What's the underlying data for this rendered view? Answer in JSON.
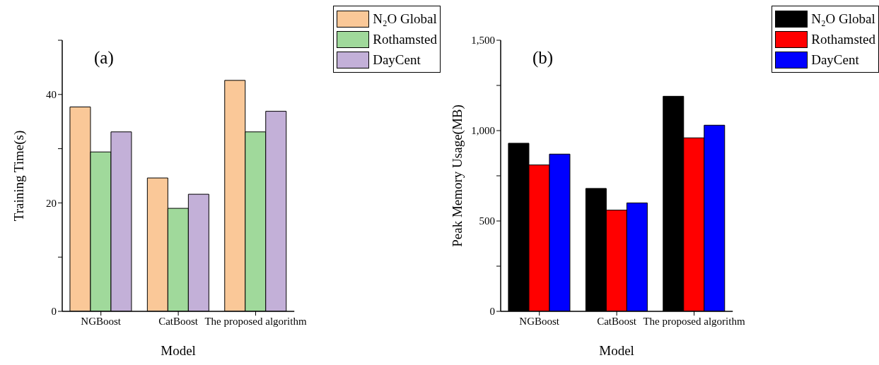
{
  "chart_data": [
    {
      "type": "bar",
      "title": "(a)",
      "xlabel": "Model",
      "ylabel": "Training Time(s)",
      "categories": [
        "NGBoost",
        "CatBoost",
        "The proposed algorithm"
      ],
      "series": [
        {
          "name": "N₂O Global",
          "color": "#fac898",
          "values": [
            37.7,
            24.6,
            42.6
          ]
        },
        {
          "name": "Rothamsted",
          "color": "#a0d99b",
          "values": [
            29.4,
            19.0,
            33.1
          ]
        },
        {
          "name": "DayCent",
          "color": "#c3b0d8",
          "values": [
            33.1,
            21.6,
            36.9
          ]
        }
      ],
      "ylim": [
        0,
        50
      ],
      "yticks": [
        0,
        {
          "value": 10,
          "label": null
        },
        20,
        {
          "value": 30,
          "label": null
        },
        40,
        {
          "value": 50,
          "label": null
        }
      ],
      "legend": "top right"
    },
    {
      "type": "bar",
      "title": "(b)",
      "xlabel": "Model",
      "ylabel": "Peak Memory Usage(MB)",
      "categories": [
        "NGBoost",
        "CatBoost",
        "The proposed algorithm"
      ],
      "series": [
        {
          "name": "N₂O Global",
          "color": "#000000",
          "values": [
            930,
            680,
            1190
          ]
        },
        {
          "name": "Rothamsted",
          "color": "#ff0000",
          "values": [
            810,
            560,
            960
          ]
        },
        {
          "name": "DayCent",
          "color": "#0000ff",
          "values": [
            870,
            600,
            1030
          ]
        }
      ],
      "ylim": [
        0,
        1500
      ],
      "yticks": [
        0,
        {
          "value": 250,
          "label": null
        },
        500,
        {
          "value": 750,
          "label": null
        },
        {
          "value": 1000,
          "label": "1,000"
        },
        {
          "value": 1250,
          "label": null
        },
        {
          "value": 1500,
          "label": "1,500"
        }
      ],
      "legend": "top right"
    }
  ]
}
